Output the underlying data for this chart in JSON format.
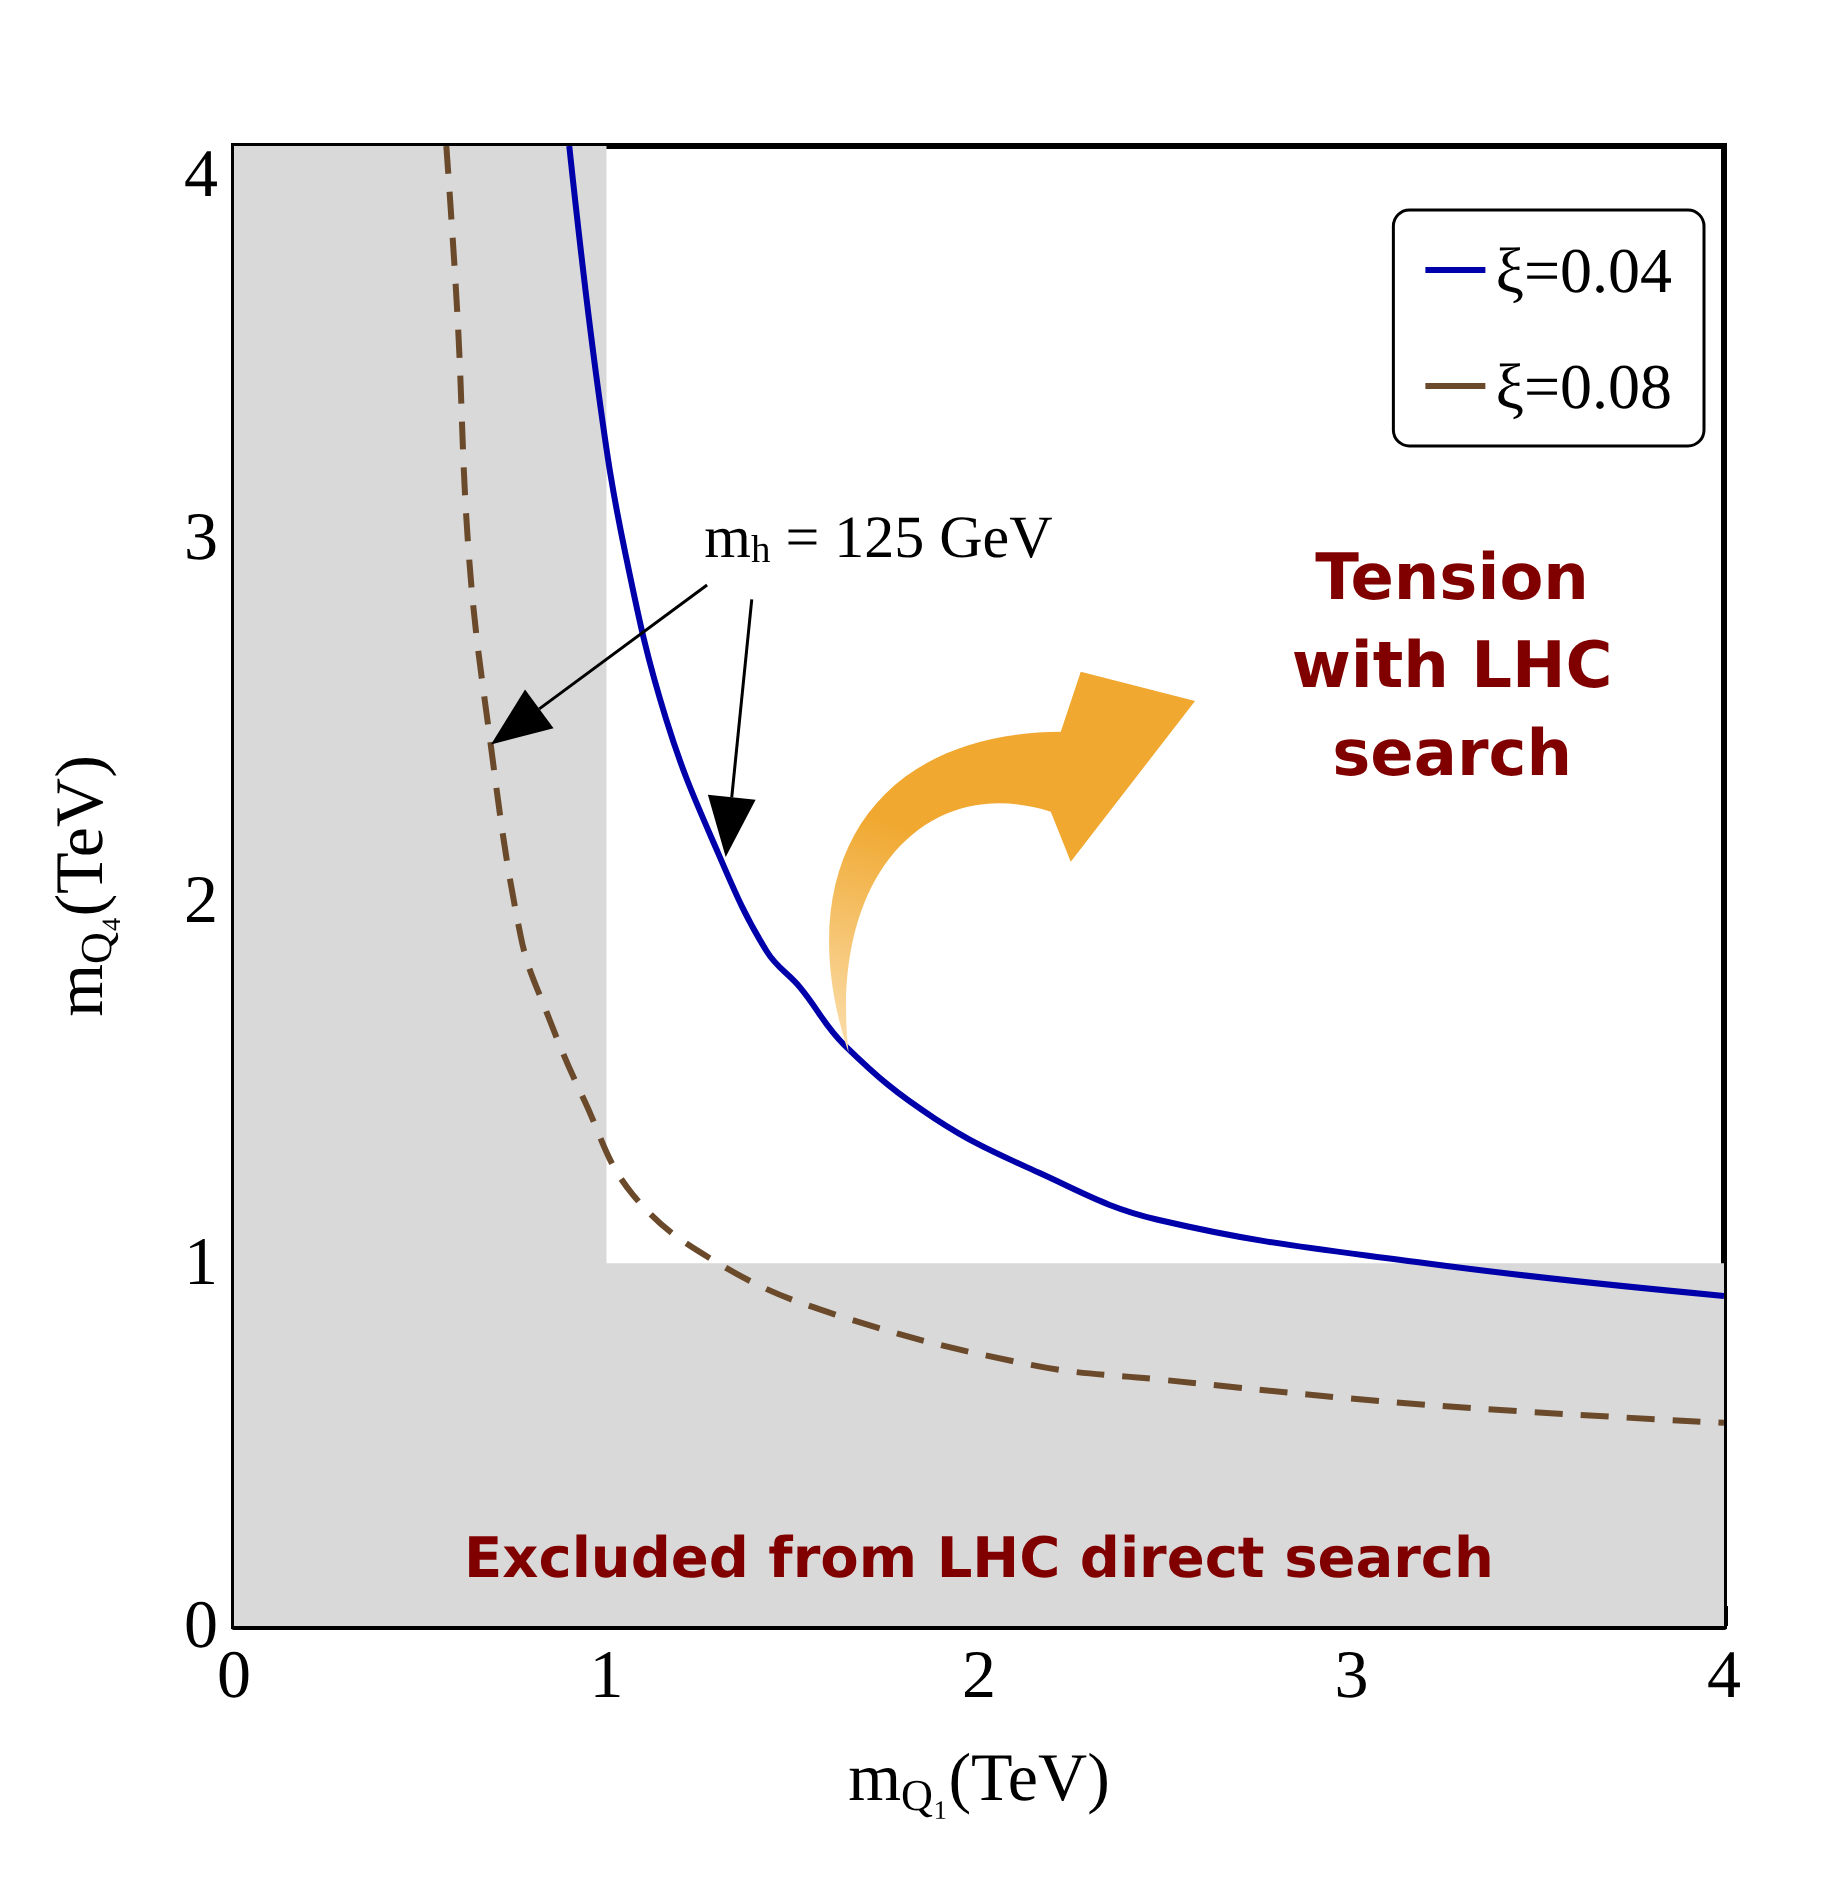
{
  "chart_data": {
    "type": "line",
    "xlabel": "m$_{Q₁}$(TeV)",
    "ylabel": "m$_{Q₄}$(TeV)",
    "xlim": [
      0,
      4
    ],
    "ylim": [
      0,
      4.08
    ],
    "xticks": [
      0,
      1,
      2,
      3,
      4
    ],
    "yticks": [
      0,
      1,
      2,
      3,
      4
    ],
    "grid": false,
    "legend": "top right",
    "series": [
      {
        "name": "ξ=0.04",
        "color": "#0000aa",
        "line_style": "solid",
        "x": [
          0.9,
          0.98,
          1.05,
          1.16,
          1.3,
          1.43,
          1.52,
          1.64,
          1.88,
          2.16,
          2.48,
          3.2,
          4.0
        ],
        "values": [
          4.08,
          3.39,
          2.96,
          2.5,
          2.13,
          1.86,
          1.76,
          1.6,
          1.4,
          1.25,
          1.12,
          1.0,
          0.91
        ]
      },
      {
        "name": "ξ=0.08",
        "color": "#6b4a2b",
        "line_style": "dashed",
        "x": [
          0.57,
          0.6,
          0.63,
          0.68,
          0.77,
          0.84,
          0.94,
          1.07,
          1.3,
          1.61,
          2.14,
          2.48,
          3.2,
          4.0
        ],
        "values": [
          4.08,
          3.61,
          2.96,
          2.5,
          1.9,
          1.69,
          1.45,
          1.19,
          1.0,
          0.86,
          0.72,
          0.68,
          0.61,
          0.56
        ]
      }
    ],
    "bands": [
      {
        "axis": "x",
        "from": 0,
        "to": 1,
        "color": "#d9d9d9"
      },
      {
        "axis": "y",
        "from": 0,
        "to": 1,
        "color": "#d9d9d9",
        "label": "Excluded from LHC direct search"
      }
    ],
    "annotations": [
      "m$_{h}$ = 125 GeV",
      "Tension with LHC search"
    ]
  }
}
